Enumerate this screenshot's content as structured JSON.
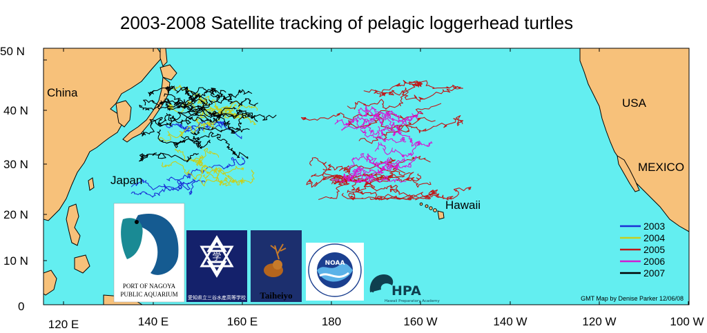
{
  "title": "2003-2008 Satellite tracking of pelagic loggerhead turtles",
  "colors": {
    "ocean": "#63eef0",
    "land": "#f7c17a",
    "coast": "#000000",
    "y2003": "#1a2fd6",
    "y2004": "#c7cf1c",
    "y2005": "#c01616",
    "y2006": "#d21bd2",
    "y2007": "#000000"
  },
  "axes": {
    "lat_labels": [
      "50 N",
      "40 N",
      "30 N",
      "20 N",
      "10 N",
      "0"
    ],
    "lon_labels": [
      "120 E",
      "140 E",
      "160 E",
      "180",
      "160 W",
      "140 W",
      "120 W",
      "100 W"
    ]
  },
  "places": {
    "china": "China",
    "japan": "Japan",
    "hawaii": "Hawaii",
    "usa": "USA",
    "mexico": "MEXICO"
  },
  "legend": [
    {
      "year": "2003",
      "color": "#1a2fd6"
    },
    {
      "year": "2004",
      "color": "#c7cf1c"
    },
    {
      "year": "2005",
      "color": "#c01616"
    },
    {
      "year": "2006",
      "color": "#d21bd2"
    },
    {
      "year": "2007",
      "color": "#000000"
    }
  ],
  "credit": "GMT Map by Denise Parker 12/06/08",
  "logos": {
    "nagoya_line1": "PORT OF NAGOYA",
    "nagoya_line2": "PUBLIC AQUARIUM",
    "school": "愛知県立三谷水産高等学校",
    "taiheiyo": "Taiheiyo",
    "noaa": "NOAA",
    "noaa_ring": "NATIONAL OCEANIC AND ATMOSPHERIC ADMINISTRATION",
    "noaa_dept": "U.S. DEPARTMENT OF COMMERCE",
    "hpa": "HPA",
    "hpa_sub": "Hawaii Preparatory Academy"
  }
}
